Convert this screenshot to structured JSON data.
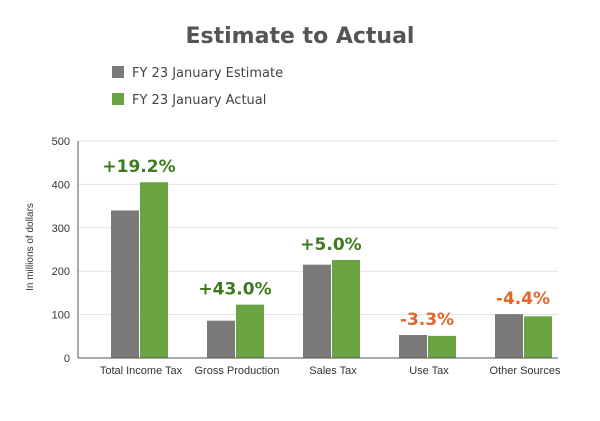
{
  "chart_data": {
    "type": "bar",
    "title": "Estimate to Actual",
    "ylabel": "In millions of dollars",
    "xlabel": "",
    "ylim": [
      0,
      500
    ],
    "yticks": [
      0,
      100,
      200,
      300,
      400,
      500
    ],
    "grid": true,
    "legend_position": "top-left",
    "categories": [
      "Total Income Tax",
      "Gross Production",
      "Sales Tax",
      "Use Tax",
      "Other Sources"
    ],
    "series": [
      {
        "name": "FY 23 January Estimate",
        "color": "#7a7a7a",
        "values": [
          340,
          86,
          215,
          53,
          101
        ]
      },
      {
        "name": "FY 23 January Actual",
        "color": "#6aa341",
        "values": [
          405,
          123,
          226,
          51,
          96
        ]
      }
    ],
    "annotations": [
      {
        "text": "+19.2%",
        "color": "#3e7a1e"
      },
      {
        "text": "+43.0%",
        "color": "#3e7a1e"
      },
      {
        "text": "+5.0%",
        "color": "#3e7a1e"
      },
      {
        "text": "-3.3%",
        "color": "#e0662a"
      },
      {
        "text": "-4.4%",
        "color": "#e0662a"
      }
    ]
  }
}
